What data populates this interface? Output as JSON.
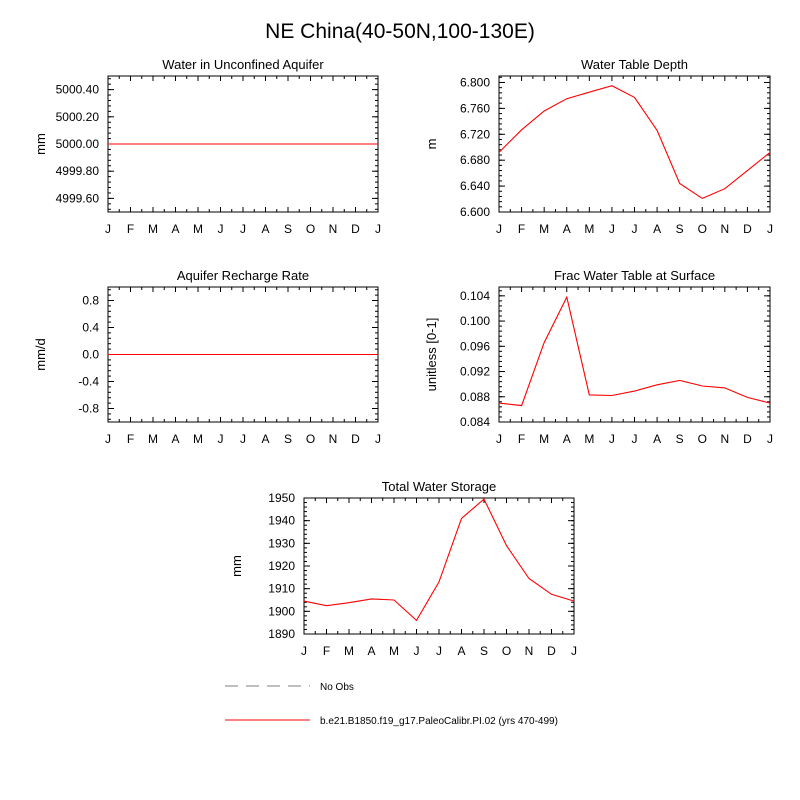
{
  "title": "NE China(40-50N,100-130E)",
  "months": [
    "J",
    "F",
    "M",
    "A",
    "M",
    "J",
    "J",
    "A",
    "S",
    "O",
    "N",
    "D",
    "J"
  ],
  "colors": {
    "model": "#ff0000",
    "obs": "#999999",
    "axis": "#000000"
  },
  "legend": {
    "obs_label": "No Obs",
    "model_label": "b.e21.B1850.f19_g17.PaleoCalibr.PI.02 (yrs 470-499)"
  },
  "chart_data": [
    {
      "type": "line",
      "title": "Water in Unconfined Aquifer",
      "ylabel": "mm",
      "xlabel": "",
      "ylim": [
        4999.5,
        5000.5
      ],
      "yticks": [
        4999.6,
        4999.8,
        5000.0,
        5000.2,
        5000.4
      ],
      "ytick_labels": [
        "4999.60",
        "4999.80",
        "5000.00",
        "5000.20",
        "5000.40"
      ],
      "values": [
        5000.0,
        5000.0,
        5000.0,
        5000.0,
        5000.0,
        5000.0,
        5000.0,
        5000.0,
        5000.0,
        5000.0,
        5000.0,
        5000.0,
        5000.0
      ]
    },
    {
      "type": "line",
      "title": "Water Table Depth",
      "ylabel": "m",
      "xlabel": "",
      "ylim": [
        6.6,
        6.81
      ],
      "yticks": [
        6.6,
        6.64,
        6.68,
        6.72,
        6.76,
        6.8
      ],
      "ytick_labels": [
        "6.600",
        "6.640",
        "6.680",
        "6.720",
        "6.760",
        "6.800"
      ],
      "values": [
        6.692,
        6.727,
        6.756,
        6.775,
        6.785,
        6.795,
        6.777,
        6.726,
        6.644,
        6.621,
        6.636,
        6.664,
        6.692
      ]
    },
    {
      "type": "line",
      "title": "Aquifer Recharge Rate",
      "ylabel": "mm/d",
      "xlabel": "",
      "ylim": [
        -1.0,
        1.0
      ],
      "yticks": [
        -0.8,
        -0.4,
        0.0,
        0.4,
        0.8
      ],
      "ytick_labels": [
        "-0.8",
        "-0.4",
        "0.0",
        "0.4",
        "0.8"
      ],
      "values": [
        0,
        0,
        0,
        0,
        0,
        0,
        0,
        0,
        0,
        0,
        0,
        0,
        0
      ]
    },
    {
      "type": "line",
      "title": "Frac Water Table at Surface",
      "ylabel": "unitless [0-1]",
      "xlabel": "",
      "ylim": [
        0.084,
        0.1054
      ],
      "yticks": [
        0.084,
        0.088,
        0.092,
        0.096,
        0.1,
        0.104
      ],
      "ytick_labels": [
        "0.084",
        "0.088",
        "0.092",
        "0.096",
        "0.100",
        "0.104"
      ],
      "values": [
        0.087,
        0.0866,
        0.0966,
        0.1038,
        0.0883,
        0.0882,
        0.0889,
        0.0899,
        0.0906,
        0.0897,
        0.0894,
        0.0879,
        0.087
      ]
    },
    {
      "type": "line",
      "title": "Total Water Storage",
      "ylabel": "mm",
      "xlabel": "",
      "ylim": [
        1890,
        1950
      ],
      "yticks": [
        1890,
        1900,
        1910,
        1920,
        1930,
        1940,
        1950
      ],
      "ytick_labels": [
        "1890",
        "1900",
        "1910",
        "1920",
        "1930",
        "1940",
        "1950"
      ],
      "values": [
        1904.5,
        1902.5,
        1903.8,
        1905.5,
        1905.0,
        1896.0,
        1913.0,
        1941.0,
        1949.5,
        1929.0,
        1914.5,
        1907.5,
        1904.5
      ]
    }
  ]
}
